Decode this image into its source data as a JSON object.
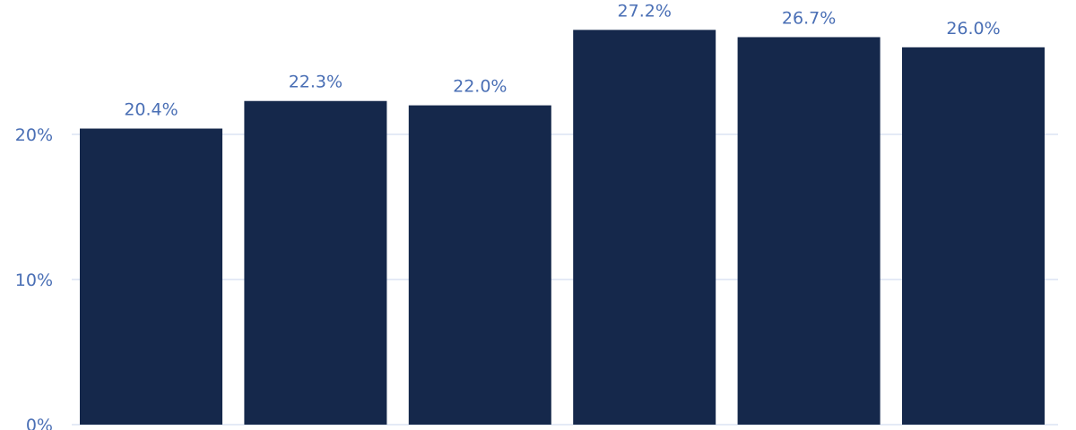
{
  "chart_data": {
    "type": "bar",
    "categories": [
      "",
      "",
      "",
      "",
      "",
      ""
    ],
    "values": [
      20.4,
      22.3,
      22.0,
      27.2,
      26.7,
      26.0
    ],
    "data_labels": [
      "20.4%",
      "22.3%",
      "22.0%",
      "27.2%",
      "26.7%",
      "26.0%"
    ],
    "y_ticks": [
      0,
      10,
      20
    ],
    "y_tick_labels": [
      "0%",
      "10%",
      "20%"
    ],
    "ylim": [
      0,
      29.5
    ],
    "grid": true,
    "title": "",
    "xlabel": "",
    "ylabel": "",
    "colors": {
      "bar": "#15284b",
      "label": "#4a6fb5",
      "grid": "#c9d6ee"
    }
  }
}
